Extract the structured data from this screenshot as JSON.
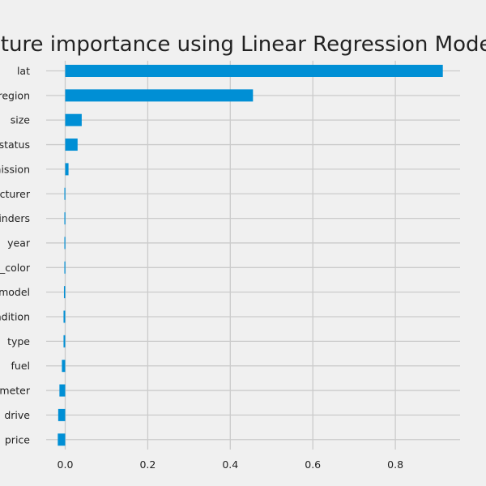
{
  "chart_data": {
    "type": "bar",
    "orientation": "horizontal",
    "title": "Feature importance using Linear Regression Model",
    "xlabel": "",
    "ylabel": "",
    "categories": [
      "lat",
      "region",
      "size",
      "title_status",
      "transmission",
      "manufacturer",
      "cylinders",
      "year",
      "paint_color",
      "model",
      "condition",
      "type",
      "fuel",
      "odometer",
      "drive",
      "price"
    ],
    "values": [
      0.915,
      0.455,
      0.04,
      0.03,
      0.008,
      -0.002,
      -0.002,
      -0.002,
      -0.002,
      -0.003,
      -0.004,
      -0.004,
      -0.008,
      -0.014,
      -0.017,
      -0.018
    ],
    "xticks": [
      "0.0",
      "0.2",
      "0.4",
      "0.6",
      "0.8"
    ],
    "xlim": [
      -0.065,
      0.955
    ],
    "grid": true,
    "bar_color": "#008fd5",
    "background": "#f0f0f0",
    "grid_color": "#cbcbcb"
  }
}
